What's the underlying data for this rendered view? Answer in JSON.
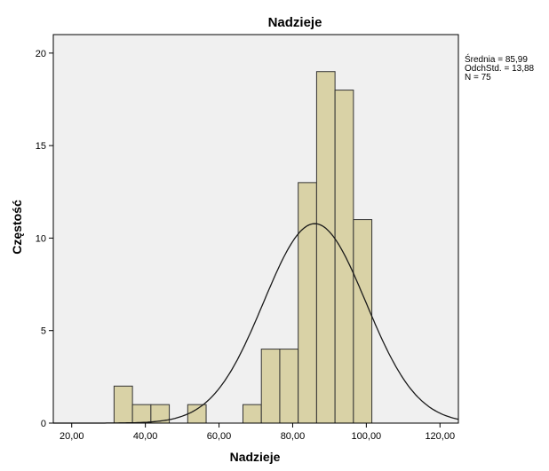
{
  "chart_data": {
    "type": "bar",
    "title": "Nadzieje",
    "xlabel": "Nadzieje",
    "ylabel": "Częstość",
    "xlim": [
      15,
      125
    ],
    "ylim": [
      0,
      21
    ],
    "x_ticks": [
      20,
      40,
      60,
      80,
      100,
      120
    ],
    "x_tick_labels": [
      "20,00",
      "40,00",
      "60,00",
      "80,00",
      "100,00",
      "120,00"
    ],
    "y_ticks": [
      0,
      5,
      10,
      15,
      20
    ],
    "y_tick_labels": [
      "0",
      "5",
      "10",
      "15",
      "20"
    ],
    "bin_width": 5,
    "bins": [
      {
        "start": 31.5,
        "count": 2
      },
      {
        "start": 36.5,
        "count": 1
      },
      {
        "start": 41.5,
        "count": 1
      },
      {
        "start": 51.5,
        "count": 1
      },
      {
        "start": 66.5,
        "count": 1
      },
      {
        "start": 71.5,
        "count": 4
      },
      {
        "start": 76.5,
        "count": 4
      },
      {
        "start": 81.5,
        "count": 13
      },
      {
        "start": 86.5,
        "count": 19
      },
      {
        "start": 91.5,
        "count": 18
      },
      {
        "start": 96.5,
        "count": 11
      }
    ],
    "normal_curve": {
      "mean": 85.99,
      "sd": 13.88,
      "n": 75
    },
    "stats": {
      "mean": "Średnia = 85,99",
      "sd": "OdchStd. = 13,88",
      "n": "N = 75"
    },
    "grid": false,
    "colors": {
      "bar_fill": "#d9d2a6",
      "bar_stroke": "#333333",
      "plot_background": "#f0f0f0",
      "curve": "#1a1a1a"
    }
  }
}
